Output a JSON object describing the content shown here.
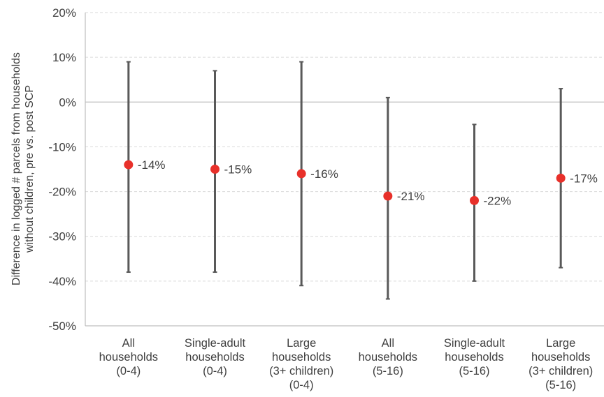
{
  "chart_data": {
    "type": "scatter",
    "title": "",
    "ylabel_lines": [
      "Difference in logged # parcels from households",
      "without children, pre vs. post SCP"
    ],
    "categories": [
      [
        "All",
        "households",
        "(0-4)"
      ],
      [
        "Single-adult",
        "households",
        "(0-4)"
      ],
      [
        "Large",
        "households",
        "(3+ children)",
        "(0-4)"
      ],
      [
        "All",
        "households",
        "(5-16)"
      ],
      [
        "Single-adult",
        "households",
        "(5-16)"
      ],
      [
        "Large",
        "households",
        "(3+ children)",
        "(5-16)"
      ]
    ],
    "values": [
      -14,
      -15,
      -16,
      -21,
      -22,
      -17
    ],
    "value_labels": [
      "-14%",
      "-15%",
      "-16%",
      "-21%",
      "-22%",
      "-17%"
    ],
    "ci_low": [
      -38,
      -38,
      -41,
      -44,
      -40,
      -37
    ],
    "ci_high": [
      9,
      7,
      9,
      1,
      -5,
      3
    ],
    "ylim": [
      -50,
      20
    ],
    "y_ticks": [
      20,
      10,
      0,
      -10,
      -20,
      -30,
      -40,
      -50
    ],
    "y_tick_labels": [
      "20%",
      "10%",
      "0%",
      "-10%",
      "-20%",
      "-30%",
      "-40%",
      "-50%"
    ],
    "grid": true,
    "colors": {
      "point": "#e8302a",
      "errorbar": "#595959",
      "grid": "#d9d9d9",
      "axis": "#bfbfbf"
    }
  }
}
